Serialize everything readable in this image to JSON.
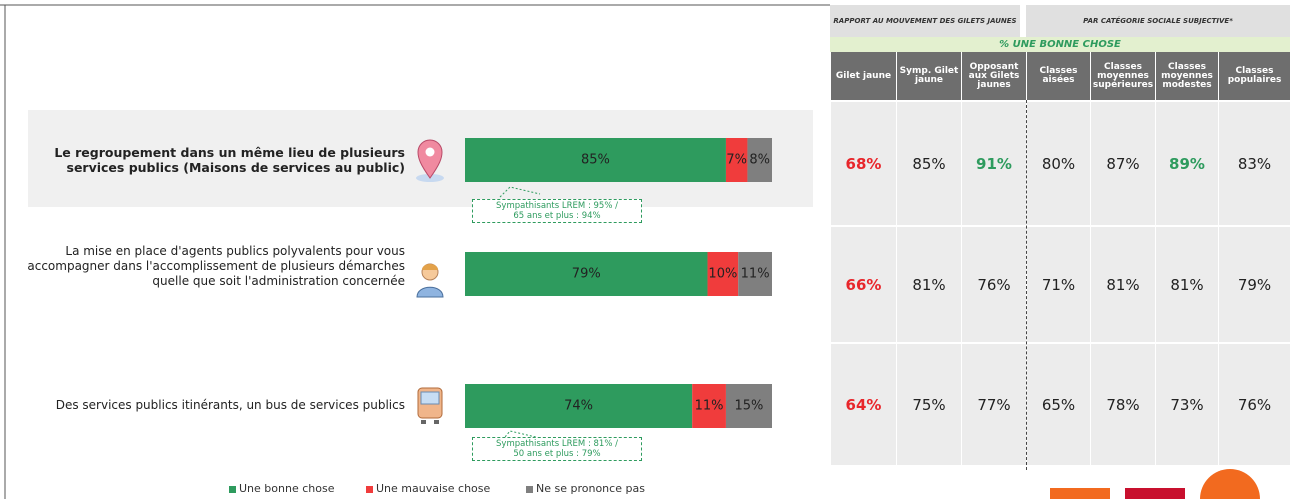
{
  "chart_data": {
    "type": "bar",
    "orientation": "horizontal",
    "stacked": true,
    "categories": [
      "Le regroupement dans un même lieu de plusieurs services publics (Maisons de services au public)",
      "La mise en place d'agents publics polyvalents pour vous accompagner dans l'accomplissement de plusieurs démarches quelle que soit l'administration concernée",
      "Des services publics itinérants, un bus de services publics"
    ],
    "series": [
      {
        "name": "Une bonne chose",
        "color": "#2e9b5e",
        "values": [
          85,
          79,
          74
        ],
        "value_labels": [
          "85%",
          "79%",
          "74%"
        ]
      },
      {
        "name": "Une mauvaise chose",
        "color": "#f03c3c",
        "values": [
          7,
          10,
          11
        ],
        "value_labels": [
          "7%",
          "10%",
          "11%"
        ]
      },
      {
        "name": "Ne se prononce pas",
        "color": "#7f7f7f",
        "values": [
          8,
          11,
          15
        ],
        "value_labels": [
          "8%",
          "11%",
          "15%"
        ]
      }
    ],
    "xlim": [
      0,
      100
    ],
    "annotations": [
      [
        "Sympathisants LREM : 95% /",
        "65 ans et plus : 94%"
      ],
      [
        "Sympathisants LREM : 81% /",
        "50 ans et plus : 79%"
      ]
    ]
  },
  "table": {
    "groups": [
      "Rapport au mouvement des Gilets jaunes",
      "Par catégorie sociale subjective*"
    ],
    "subheader": "% Une bonne chose",
    "columns": [
      "Gilet jaune",
      "Symp. Gilet jaune",
      "Opposant aux Gilets jaunes",
      "Classes aisées",
      "Classes moyennes supérieures",
      "Classes moyennes modestes",
      "Classes populaires"
    ],
    "rows": [
      [
        "68%",
        "85%",
        "91%",
        "80%",
        "87%",
        "89%",
        "83%"
      ],
      [
        "66%",
        "81%",
        "76%",
        "71%",
        "81%",
        "81%",
        "79%"
      ],
      [
        "64%",
        "75%",
        "77%",
        "65%",
        "78%",
        "73%",
        "76%"
      ]
    ]
  }
}
